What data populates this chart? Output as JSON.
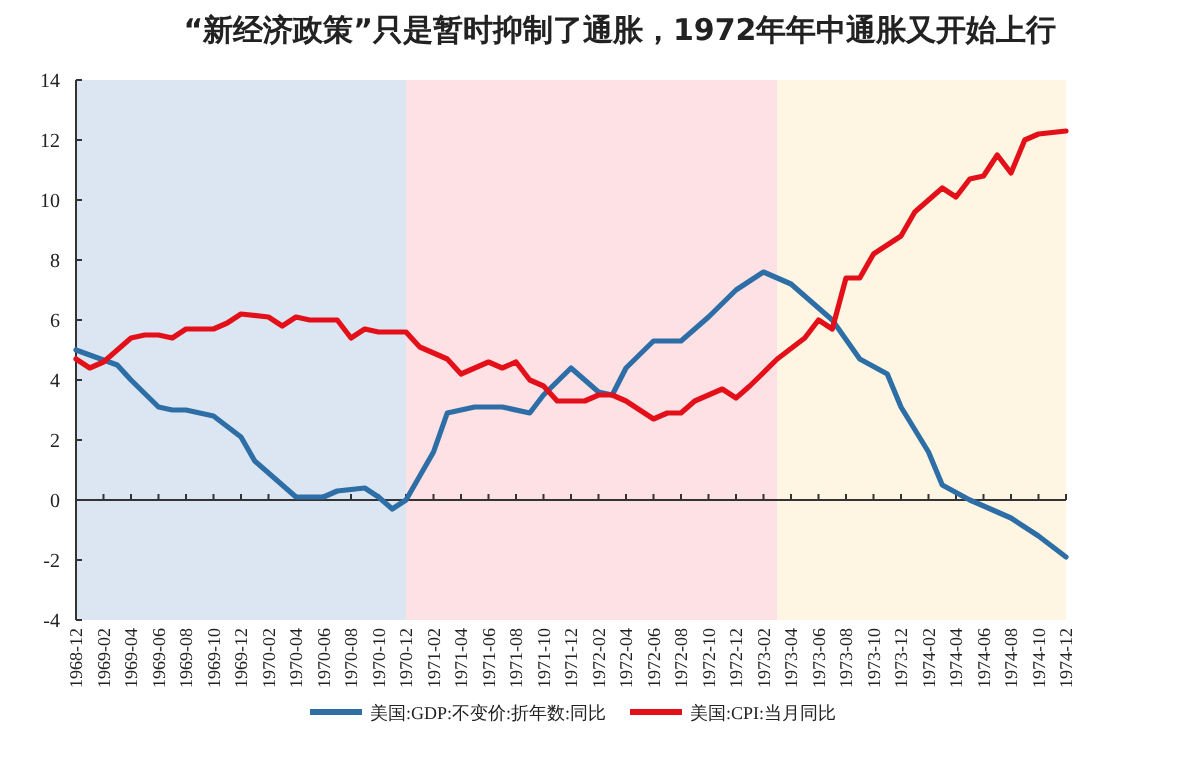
{
  "chart_data": {
    "type": "line",
    "title": "“新经济政策”只是暂时抑制了通胀，1972年年中通胀又开始上行",
    "xlim": [
      "1968-12",
      "1974-12"
    ],
    "xticks": [
      "1968-12",
      "1969-02",
      "1969-04",
      "1969-06",
      "1969-08",
      "1969-10",
      "1969-12",
      "1970-02",
      "1970-04",
      "1970-06",
      "1970-08",
      "1970-10",
      "1970-12",
      "1971-02",
      "1971-04",
      "1971-06",
      "1971-08",
      "1971-10",
      "1971-12",
      "1972-02",
      "1972-04",
      "1972-06",
      "1972-08",
      "1972-10",
      "1972-12",
      "1973-02",
      "1973-04",
      "1973-06",
      "1973-08",
      "1973-10",
      "1973-12",
      "1974-02",
      "1974-04",
      "1974-06",
      "1974-08",
      "1974-10",
      "1974-12"
    ],
    "ylim": [
      -4,
      14
    ],
    "yticks": [
      -4,
      -2,
      0,
      2,
      4,
      6,
      8,
      10,
      12,
      14
    ],
    "legend": "bottom",
    "bands": [
      {
        "axis": "x",
        "from": "1968-12",
        "to": "1970-12",
        "color": "#dce6f2"
      },
      {
        "axis": "x",
        "from": "1970-12",
        "to": "1973-03",
        "color": "#fde1e4"
      },
      {
        "axis": "x",
        "from": "1973-03",
        "to": "1974-12",
        "color": "#fef6e3"
      }
    ],
    "series": [
      {
        "name": "美国:GDP:不变价:折年数:同比",
        "color": "#2e6ea6",
        "x": [
          "1968-12",
          "1969-03",
          "1969-04",
          "1969-06",
          "1969-07",
          "1969-08",
          "1969-10",
          "1969-12",
          "1970-01",
          "1970-03",
          "1970-04",
          "1970-06",
          "1970-07",
          "1970-09",
          "1970-10",
          "1970-11",
          "1970-12",
          "1971-02",
          "1971-03",
          "1971-05",
          "1971-07",
          "1971-09",
          "1971-10",
          "1971-12",
          "1972-01",
          "1972-02",
          "1972-03",
          "1972-04",
          "1972-06",
          "1972-08",
          "1972-10",
          "1972-12",
          "1973-02",
          "1973-04",
          "1973-07",
          "1973-09",
          "1973-11",
          "1973-12",
          "1974-02",
          "1974-03",
          "1974-05",
          "1974-07",
          "1974-08",
          "1974-10",
          "1974-12"
        ],
        "values": [
          5.0,
          4.5,
          4.0,
          3.1,
          3.0,
          3.0,
          2.8,
          2.1,
          1.3,
          0.5,
          0.1,
          0.1,
          0.3,
          0.4,
          0.1,
          -0.3,
          0.0,
          1.6,
          2.9,
          3.1,
          3.1,
          2.9,
          3.5,
          4.4,
          4.0,
          3.6,
          3.5,
          4.4,
          5.3,
          5.3,
          6.1,
          7.0,
          7.6,
          7.2,
          6.0,
          4.7,
          4.2,
          3.1,
          1.6,
          0.5,
          0.0,
          -0.4,
          -0.6,
          -1.2,
          -1.9
        ]
      },
      {
        "name": "美国:CPI:当月同比",
        "color": "#e3101a",
        "x": [
          "1968-12",
          "1969-01",
          "1969-02",
          "1969-04",
          "1969-05",
          "1969-06",
          "1969-07",
          "1969-08",
          "1969-10",
          "1969-11",
          "1969-12",
          "1970-02",
          "1970-03",
          "1970-04",
          "1970-05",
          "1970-07",
          "1970-08",
          "1970-09",
          "1970-10",
          "1970-12",
          "1971-01",
          "1971-03",
          "1971-04",
          "1971-05",
          "1971-06",
          "1971-07",
          "1971-08",
          "1971-09",
          "1971-10",
          "1971-11",
          "1972-01",
          "1972-02",
          "1972-03",
          "1972-04",
          "1972-06",
          "1972-07",
          "1972-08",
          "1972-09",
          "1972-11",
          "1972-12",
          "1973-01",
          "1973-03",
          "1973-05",
          "1973-06",
          "1973-07",
          "1973-08",
          "1973-09",
          "1973-10",
          "1973-12",
          "1974-01",
          "1974-03",
          "1974-04",
          "1974-05",
          "1974-06",
          "1974-07",
          "1974-08",
          "1974-09",
          "1974-10",
          "1974-12"
        ],
        "values": [
          4.7,
          4.4,
          4.6,
          5.4,
          5.5,
          5.5,
          5.4,
          5.7,
          5.7,
          5.9,
          6.2,
          6.1,
          5.8,
          6.1,
          6.0,
          6.0,
          5.4,
          5.7,
          5.6,
          5.6,
          5.1,
          4.7,
          4.2,
          4.4,
          4.6,
          4.4,
          4.6,
          4.0,
          3.8,
          3.3,
          3.3,
          3.5,
          3.5,
          3.3,
          2.7,
          2.9,
          2.9,
          3.3,
          3.7,
          3.4,
          3.8,
          4.7,
          5.4,
          6.0,
          5.7,
          7.4,
          7.4,
          8.2,
          8.8,
          9.6,
          10.4,
          10.1,
          10.7,
          10.8,
          11.5,
          10.9,
          12.0,
          12.2,
          12.3
        ]
      }
    ]
  }
}
